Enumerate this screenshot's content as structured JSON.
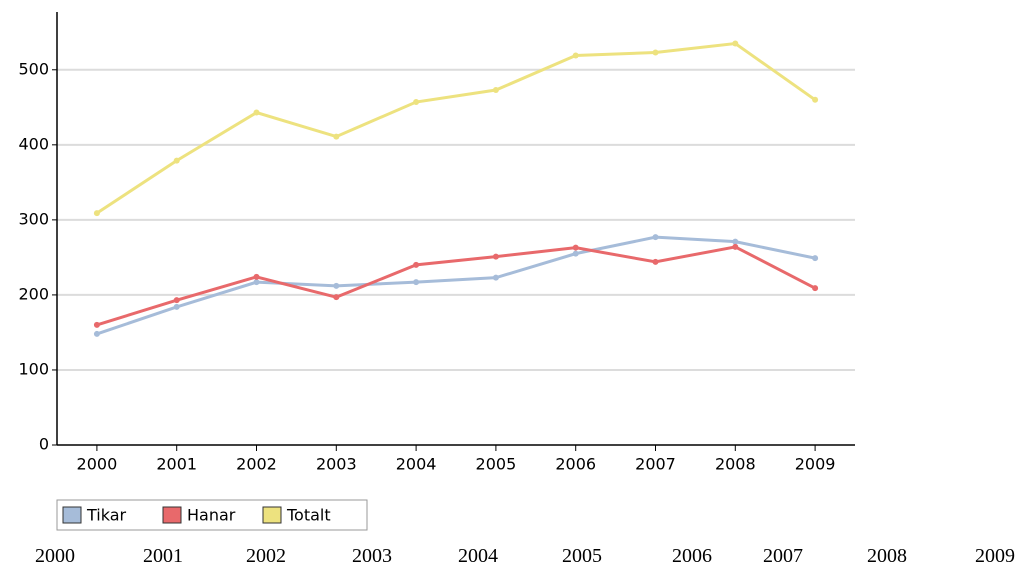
{
  "chart_data": {
    "type": "line",
    "categories": [
      "2000",
      "2001",
      "2002",
      "2003",
      "2004",
      "2005",
      "2006",
      "2007",
      "2008",
      "2009"
    ],
    "series": [
      {
        "name": "Tikar",
        "color": "#a6bcd9",
        "values": [
          148,
          184,
          217,
          212,
          217,
          223,
          255,
          277,
          271,
          249
        ]
      },
      {
        "name": "Hanar",
        "color": "#e8696b",
        "values": [
          160,
          193,
          224,
          197,
          240,
          251,
          263,
          244,
          264,
          209
        ]
      },
      {
        "name": "Totalt",
        "color": "#ede27f",
        "values": [
          309,
          379,
          443,
          411,
          457,
          473,
          519,
          523,
          535,
          460
        ]
      }
    ],
    "ylim": [
      0,
      577
    ],
    "yticks": [
      0,
      100,
      200,
      300,
      400,
      500
    ],
    "grid": true,
    "legend": "bottom-left"
  }
}
